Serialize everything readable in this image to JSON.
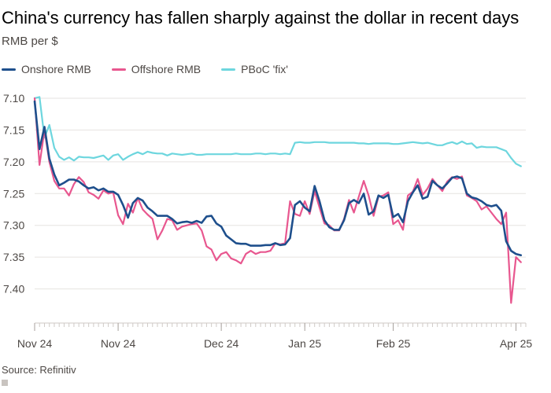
{
  "title": "China's currency has fallen sharply against the dollar in recent days",
  "subtitle": "RMB per $",
  "source": "Source: Refinitiv",
  "colors": {
    "onshore": "#1e4f8c",
    "offshore": "#e8578f",
    "fix": "#6dd6de",
    "grid": "#e6e3e0",
    "axis_text": "#4d4845"
  },
  "chart_data": {
    "type": "line",
    "ylabel": "RMB per $",
    "ylim": [
      7.1,
      7.45
    ],
    "y_inverted": true,
    "yticks": [
      7.1,
      7.15,
      7.2,
      7.25,
      7.3,
      7.35,
      7.4
    ],
    "ytick_labels": [
      "7.10",
      "7.15",
      "7.20",
      "7.25",
      "7.30",
      "7.35",
      "7.40"
    ],
    "xlim": [
      0,
      100
    ],
    "xticks": [
      0,
      17,
      38,
      55,
      73,
      98
    ],
    "xtick_labels": [
      "Nov 24",
      "Nov 24",
      "Dec 24",
      "Jan 25",
      "Feb 25",
      "Apr 25"
    ],
    "grid": true,
    "legend_position": "top-left",
    "series": [
      {
        "name": "Onshore RMB",
        "color_key": "onshore",
        "x": [
          0,
          1,
          2,
          3,
          4,
          5,
          6,
          7,
          8,
          9,
          10,
          11,
          12,
          13,
          14,
          15,
          16,
          17,
          18,
          19,
          20,
          21,
          22,
          23,
          24,
          25,
          26,
          27,
          28,
          29,
          30,
          31,
          32,
          33,
          34,
          35,
          36,
          37,
          38,
          39,
          40,
          41,
          42,
          43,
          44,
          45,
          46,
          47,
          48,
          49,
          50,
          51,
          52,
          53,
          54,
          55,
          56,
          57,
          58,
          59,
          60,
          61,
          62,
          63,
          64,
          65,
          66,
          67,
          68,
          69,
          70,
          71,
          72,
          73,
          74,
          75,
          76,
          77,
          78,
          79,
          80,
          81,
          82,
          83,
          84,
          85,
          86,
          87,
          88,
          89,
          90,
          91,
          92,
          93,
          94,
          95,
          96,
          97,
          98,
          99
        ],
        "values": [
          7.105,
          7.18,
          7.145,
          7.195,
          7.22,
          7.237,
          7.233,
          7.228,
          7.228,
          7.231,
          7.237,
          7.242,
          7.24,
          7.245,
          7.242,
          7.247,
          7.247,
          7.252,
          7.268,
          7.288,
          7.265,
          7.257,
          7.261,
          7.272,
          7.278,
          7.285,
          7.285,
          7.285,
          7.29,
          7.297,
          7.295,
          7.294,
          7.296,
          7.293,
          7.296,
          7.286,
          7.285,
          7.297,
          7.302,
          7.316,
          7.322,
          7.328,
          7.329,
          7.329,
          7.332,
          7.332,
          7.332,
          7.331,
          7.331,
          7.328,
          7.331,
          7.33,
          7.32,
          7.268,
          7.262,
          7.272,
          7.278,
          7.238,
          7.262,
          7.292,
          7.303,
          7.307,
          7.307,
          7.292,
          7.265,
          7.26,
          7.265,
          7.25,
          7.283,
          7.278,
          7.253,
          7.257,
          7.252,
          7.287,
          7.282,
          7.295,
          7.262,
          7.248,
          7.237,
          7.258,
          7.255,
          7.23,
          7.237,
          7.242,
          7.234,
          7.225,
          7.223,
          7.226,
          7.25,
          7.256,
          7.258,
          7.262,
          7.268,
          7.27,
          7.268,
          7.277,
          7.325,
          7.34,
          7.345,
          7.347
        ]
      },
      {
        "name": "Offshore RMB",
        "color_key": "offshore",
        "x": [
          0,
          1,
          2,
          3,
          4,
          5,
          6,
          7,
          8,
          9,
          10,
          11,
          12,
          13,
          14,
          15,
          16,
          17,
          18,
          19,
          20,
          21,
          22,
          23,
          24,
          25,
          26,
          27,
          28,
          29,
          30,
          31,
          32,
          33,
          34,
          35,
          36,
          37,
          38,
          39,
          40,
          41,
          42,
          43,
          44,
          45,
          46,
          47,
          48,
          49,
          50,
          51,
          52,
          53,
          54,
          55,
          56,
          57,
          58,
          59,
          60,
          61,
          62,
          63,
          64,
          65,
          66,
          67,
          68,
          69,
          70,
          71,
          72,
          73,
          74,
          75,
          76,
          77,
          78,
          79,
          80,
          81,
          82,
          83,
          84,
          85,
          86,
          87,
          88,
          89,
          90,
          91,
          92,
          93,
          94,
          95,
          96,
          97,
          98,
          99
        ],
        "values": [
          7.1,
          7.205,
          7.15,
          7.2,
          7.23,
          7.242,
          7.242,
          7.253,
          7.235,
          7.224,
          7.232,
          7.248,
          7.252,
          7.258,
          7.245,
          7.25,
          7.248,
          7.284,
          7.298,
          7.266,
          7.28,
          7.257,
          7.275,
          7.283,
          7.29,
          7.322,
          7.308,
          7.29,
          7.292,
          7.307,
          7.302,
          7.3,
          7.298,
          7.297,
          7.308,
          7.333,
          7.338,
          7.355,
          7.345,
          7.342,
          7.352,
          7.355,
          7.36,
          7.345,
          7.34,
          7.345,
          7.342,
          7.342,
          7.34,
          7.328,
          7.33,
          7.328,
          7.262,
          7.282,
          7.285,
          7.262,
          7.282,
          7.246,
          7.272,
          7.297,
          7.3,
          7.308,
          7.308,
          7.29,
          7.26,
          7.28,
          7.255,
          7.23,
          7.253,
          7.285,
          7.255,
          7.253,
          7.248,
          7.298,
          7.292,
          7.307,
          7.253,
          7.247,
          7.227,
          7.252,
          7.242,
          7.227,
          7.237,
          7.246,
          7.231,
          7.224,
          7.227,
          7.223,
          7.253,
          7.257,
          7.262,
          7.275,
          7.27,
          7.28,
          7.29,
          7.298,
          7.28,
          7.422,
          7.35,
          7.358
        ]
      },
      {
        "name": "PBoC 'fix'",
        "color_key": "fix",
        "x": [
          0,
          1,
          2,
          3,
          4,
          5,
          6,
          7,
          8,
          9,
          10,
          11,
          12,
          13,
          14,
          15,
          16,
          17,
          18,
          19,
          20,
          21,
          22,
          23,
          24,
          25,
          26,
          27,
          28,
          29,
          30,
          31,
          32,
          33,
          34,
          35,
          36,
          37,
          38,
          39,
          40,
          41,
          42,
          43,
          44,
          45,
          46,
          47,
          48,
          49,
          50,
          51,
          52,
          53,
          54,
          55,
          56,
          57,
          58,
          59,
          60,
          61,
          62,
          63,
          64,
          65,
          66,
          67,
          68,
          69,
          70,
          71,
          72,
          73,
          74,
          75,
          76,
          77,
          78,
          79,
          80,
          81,
          82,
          83,
          84,
          85,
          86,
          87,
          88,
          89,
          90,
          91,
          92,
          93,
          94,
          95,
          96,
          97,
          98,
          99
        ],
        "values": [
          7.1,
          7.098,
          7.162,
          7.142,
          7.178,
          7.192,
          7.197,
          7.193,
          7.198,
          7.192,
          7.193,
          7.193,
          7.194,
          7.192,
          7.19,
          7.197,
          7.19,
          7.188,
          7.197,
          7.192,
          7.188,
          7.185,
          7.188,
          7.184,
          7.186,
          7.187,
          7.187,
          7.19,
          7.187,
          7.188,
          7.189,
          7.188,
          7.187,
          7.189,
          7.189,
          7.188,
          7.188,
          7.188,
          7.188,
          7.188,
          7.188,
          7.187,
          7.188,
          7.188,
          7.188,
          7.187,
          7.187,
          7.188,
          7.187,
          7.187,
          7.188,
          7.187,
          7.188,
          7.17,
          7.169,
          7.17,
          7.17,
          7.169,
          7.169,
          7.169,
          7.17,
          7.17,
          7.17,
          7.17,
          7.17,
          7.17,
          7.171,
          7.171,
          7.172,
          7.171,
          7.171,
          7.171,
          7.171,
          7.172,
          7.172,
          7.171,
          7.17,
          7.169,
          7.17,
          7.171,
          7.17,
          7.172,
          7.174,
          7.174,
          7.171,
          7.169,
          7.172,
          7.168,
          7.172,
          7.171,
          7.178,
          7.176,
          7.177,
          7.177,
          7.177,
          7.18,
          7.183,
          7.194,
          7.203,
          7.207
        ]
      }
    ]
  }
}
